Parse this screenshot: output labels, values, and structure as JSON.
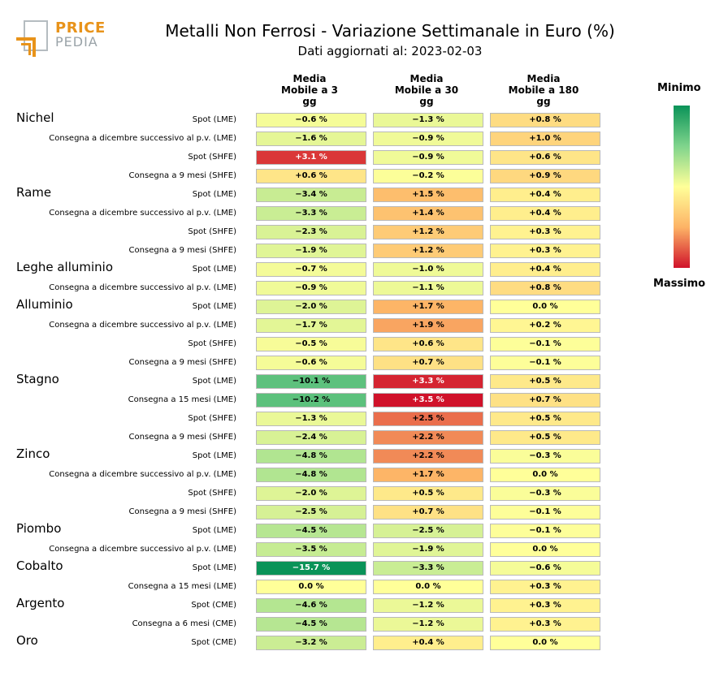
{
  "logo": {
    "word1": "PRICE",
    "word2": "PEDIA",
    "colors": {
      "orange": "#e8931a",
      "grey": "#9aa3a8"
    }
  },
  "title": "Metalli Non Ferrosi - Variazione Settimanale in Euro (%)",
  "subtitle": "Dati aggiornati al: 2023-02-03",
  "legend": {
    "min_label": "Minimo",
    "max_label": "Massimo",
    "colors": [
      "#0a9358",
      "#7fd48c",
      "#ffff99",
      "#fdb366",
      "#d0122a"
    ]
  },
  "chart_data": {
    "type": "heatmap",
    "title": "Metalli Non Ferrosi - Variazione Settimanale in Euro (%)",
    "subtitle": "Dati aggiornati al: 2023-02-03",
    "columns": [
      "Media\nMobile a 3\ngg",
      "Media\nMobile a 30\ngg",
      "Media\nMobile a 180\ngg"
    ],
    "color_scale": {
      "min": -15.7,
      "max": 3.5,
      "min_label": "Minimo",
      "max_label": "Massimo"
    },
    "groups": [
      {
        "name": "Nichel",
        "rows": [
          {
            "label": "Spot (LME)",
            "values": [
              -0.6,
              -1.3,
              0.8
            ]
          },
          {
            "label": "Consegna a dicembre successivo al p.v. (LME)",
            "values": [
              -1.6,
              -0.9,
              1.0
            ]
          },
          {
            "label": "Spot (SHFE)",
            "values": [
              3.1,
              -0.9,
              0.6
            ]
          },
          {
            "label": "Consegna a 9 mesi (SHFE)",
            "values": [
              0.6,
              -0.2,
              0.9
            ]
          }
        ]
      },
      {
        "name": "Rame",
        "rows": [
          {
            "label": "Spot (LME)",
            "values": [
              -3.4,
              1.5,
              0.4
            ]
          },
          {
            "label": "Consegna a dicembre successivo al p.v. (LME)",
            "values": [
              -3.3,
              1.4,
              0.4
            ]
          },
          {
            "label": "Spot (SHFE)",
            "values": [
              -2.3,
              1.2,
              0.3
            ]
          },
          {
            "label": "Consegna a 9 mesi (SHFE)",
            "values": [
              -1.9,
              1.2,
              0.3
            ]
          }
        ]
      },
      {
        "name": "Leghe alluminio",
        "rows": [
          {
            "label": "Spot (LME)",
            "values": [
              -0.7,
              -1.0,
              0.4
            ]
          },
          {
            "label": "Consegna a dicembre successivo al p.v. (LME)",
            "values": [
              -0.9,
              -1.1,
              0.8
            ]
          }
        ]
      },
      {
        "name": "Alluminio",
        "rows": [
          {
            "label": "Spot (LME)",
            "values": [
              -2.0,
              1.7,
              0.0
            ]
          },
          {
            "label": "Consegna a dicembre successivo al p.v. (LME)",
            "values": [
              -1.7,
              1.9,
              0.2
            ]
          },
          {
            "label": "Spot (SHFE)",
            "values": [
              -0.5,
              0.6,
              -0.1
            ]
          },
          {
            "label": "Consegna a 9 mesi (SHFE)",
            "values": [
              -0.6,
              0.7,
              -0.1
            ]
          }
        ]
      },
      {
        "name": "Stagno",
        "rows": [
          {
            "label": "Spot (LME)",
            "values": [
              -10.1,
              3.3,
              0.5
            ]
          },
          {
            "label": "Consegna a 15 mesi (LME)",
            "values": [
              -10.2,
              3.5,
              0.7
            ]
          },
          {
            "label": "Spot (SHFE)",
            "values": [
              -1.3,
              2.5,
              0.5
            ]
          },
          {
            "label": "Consegna a 9 mesi (SHFE)",
            "values": [
              -2.4,
              2.2,
              0.5
            ]
          }
        ]
      },
      {
        "name": "Zinco",
        "rows": [
          {
            "label": "Spot (LME)",
            "values": [
              -4.8,
              2.2,
              -0.3
            ]
          },
          {
            "label": "Consegna a dicembre successivo al p.v. (LME)",
            "values": [
              -4.8,
              1.7,
              0.0
            ]
          },
          {
            "label": "Spot (SHFE)",
            "values": [
              -2.0,
              0.5,
              -0.3
            ]
          },
          {
            "label": "Consegna a 9 mesi (SHFE)",
            "values": [
              -2.5,
              0.7,
              -0.1
            ]
          }
        ]
      },
      {
        "name": "Piombo",
        "rows": [
          {
            "label": "Spot (LME)",
            "values": [
              -4.5,
              -2.5,
              -0.1
            ]
          },
          {
            "label": "Consegna a dicembre successivo al p.v. (LME)",
            "values": [
              -3.5,
              -1.9,
              0.0
            ]
          }
        ]
      },
      {
        "name": "Cobalto",
        "rows": [
          {
            "label": "Spot (LME)",
            "values": [
              -15.7,
              -3.3,
              -0.6
            ]
          },
          {
            "label": "Consegna a 15 mesi (LME)",
            "values": [
              0.0,
              0.0,
              0.3
            ]
          }
        ]
      },
      {
        "name": "Argento",
        "rows": [
          {
            "label": "Spot (CME)",
            "values": [
              -4.6,
              -1.2,
              0.3
            ]
          },
          {
            "label": "Consegna a 6 mesi (CME)",
            "values": [
              -4.5,
              -1.2,
              0.3
            ]
          }
        ]
      },
      {
        "name": "Oro",
        "rows": [
          {
            "label": "Spot (CME)",
            "values": [
              -3.2,
              0.4,
              0.0
            ]
          }
        ]
      }
    ]
  }
}
